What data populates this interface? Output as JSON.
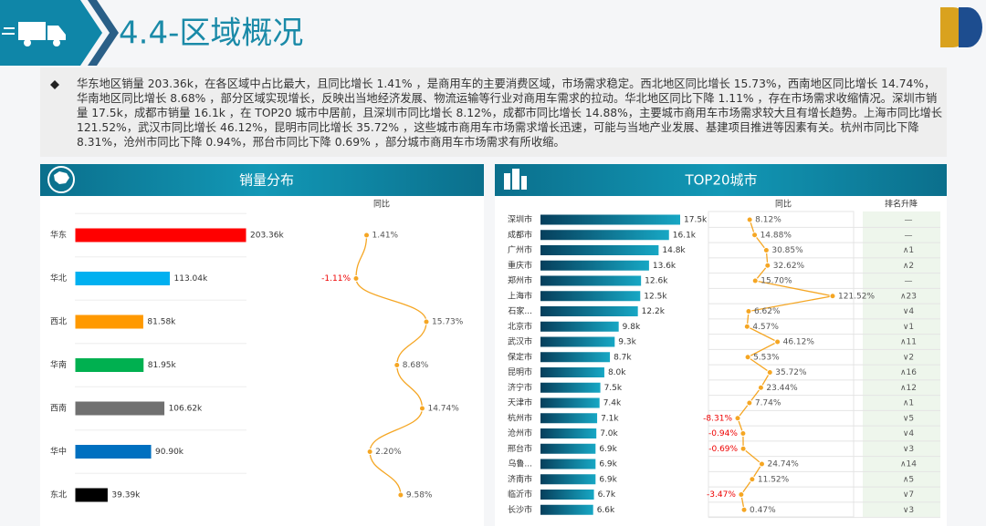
{
  "header": {
    "title": "4.4-区域概况"
  },
  "summary": "华东地区销量 203.36k，在各区域中占比最大，且同比增长 1.41% ，是商用车的主要消费区域，市场需求稳定。西北地区同比增长 15.73%，西南地区同比增长 14.74%，华南地区同比增长 8.68% ，部分区域实现增长，反映出当地经济发展、物流运输等行业对商用车需求的拉动。华北地区同比下降 1.11% ，存在市场需求收缩情况。深圳市销量 17.5k，成都市销量 16.1k ，在 TOP20 城市中居前，且深圳市同比增长 8.12%，成都市同比增长 14.88%，主要城市商用车市场需求较大且有增长趋势。上海市同比增长 121.52%，武汉市同比增长 46.12%，昆明市同比增长 35.72% ，这些城市商用车市场需求增长迅速，可能与当地产业发展、基建项目推进等因素有关。杭州市同比下降 8.31%，沧州市同比下降 0.94%，邢台市同比下降 0.69% ，部分城市商用车市场需求有所收缩。",
  "chart_data": [
    {
      "type": "bar",
      "title": "销量分布",
      "categories": [
        "华东",
        "华北",
        "西北",
        "华南",
        "西南",
        "华中",
        "东北"
      ],
      "values": [
        203.36,
        113.04,
        81.58,
        81.95,
        106.62,
        90.9,
        39.39
      ],
      "value_labels": [
        "203.36k",
        "113.04k",
        "81.58k",
        "81.95k",
        "106.62k",
        "90.90k",
        "39.39k"
      ],
      "colors": [
        "#ff0000",
        "#00b0f0",
        "#ff9900",
        "#00b050",
        "#707070",
        "#0070c0",
        "#000000"
      ],
      "yoy": {
        "name": "同比",
        "color": "#f5a623",
        "values": [
          1.41,
          -1.11,
          15.73,
          8.68,
          14.74,
          2.2,
          9.58
        ],
        "value_labels": [
          "1.41%",
          "-1.11%",
          "15.73%",
          "8.68%",
          "14.74%",
          "2.20%",
          "9.58%"
        ]
      }
    },
    {
      "type": "bar",
      "title": "TOP20城市",
      "categories": [
        "深圳市",
        "成都市",
        "广州市",
        "重庆市",
        "郑州市",
        "上海市",
        "石家...",
        "北京市",
        "武汉市",
        "保定市",
        "昆明市",
        "济宁市",
        "天津市",
        "杭州市",
        "沧州市",
        "邢台市",
        "乌鲁...",
        "济南市",
        "临沂市",
        "长沙市"
      ],
      "values": [
        17.5,
        16.1,
        14.8,
        13.6,
        12.6,
        12.5,
        12.2,
        9.8,
        9.3,
        8.7,
        8.0,
        7.5,
        7.4,
        7.1,
        7.0,
        6.9,
        6.9,
        6.9,
        6.7,
        6.6
      ],
      "value_labels": [
        "17.5k",
        "16.1k",
        "14.8k",
        "13.6k",
        "12.6k",
        "12.5k",
        "12.2k",
        "9.8k",
        "9.3k",
        "8.7k",
        "8.0k",
        "7.5k",
        "7.4k",
        "7.1k",
        "7.0k",
        "6.9k",
        "6.9k",
        "6.9k",
        "6.7k",
        "6.6k"
      ],
      "color": "#0e8aa6",
      "yoy": {
        "name": "同比",
        "color": "#f5a623",
        "values": [
          8.12,
          14.88,
          30.85,
          32.62,
          15.7,
          121.52,
          6.62,
          4.57,
          46.12,
          5.53,
          35.72,
          23.44,
          7.74,
          -8.31,
          -0.94,
          -0.69,
          24.74,
          11.52,
          -3.47,
          0.47
        ],
        "value_labels": [
          "8.12%",
          "14.88%",
          "30.85%",
          "32.62%",
          "15.70%",
          "121.52%",
          "6.62%",
          "4.57%",
          "46.12%",
          "5.53%",
          "35.72%",
          "23.44%",
          "7.74%",
          "-8.31%",
          "-0.94%",
          "-0.69%",
          "24.74%",
          "11.52%",
          "-3.47%",
          "0.47%"
        ]
      },
      "rank_change": {
        "name": "排名升降",
        "values": [
          "—",
          "—",
          "∧1",
          "∧2",
          "—",
          "∧23",
          "∨4",
          "∨1",
          "∧11",
          "∨2",
          "∧16",
          "∧12",
          "∧1",
          "∨5",
          "∨4",
          "∨3",
          "∧14",
          "∧5",
          "∨7",
          "∨3"
        ]
      }
    }
  ]
}
